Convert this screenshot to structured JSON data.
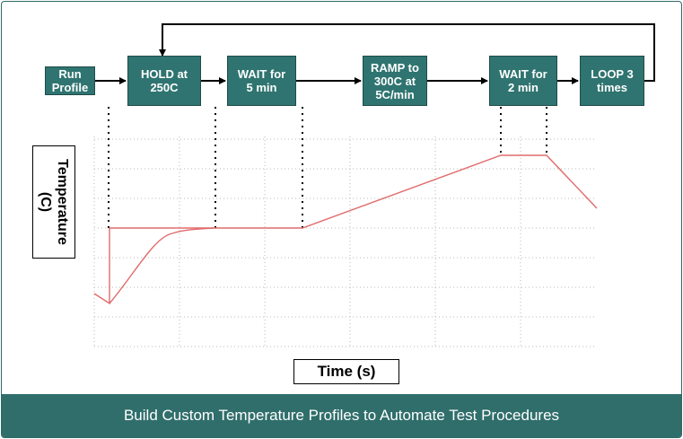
{
  "flow": {
    "steps": [
      {
        "id": "run",
        "label": "Run\nProfile"
      },
      {
        "id": "hold",
        "label": "HOLD at\n250C"
      },
      {
        "id": "wait1",
        "label": "WAIT for\n5 min"
      },
      {
        "id": "ramp",
        "label": "RAMP to\n300C at\n5C/min"
      },
      {
        "id": "wait2",
        "label": "WAIT for\n2 min"
      },
      {
        "id": "loop",
        "label": "LOOP 3\ntimes"
      }
    ],
    "loop_back": {
      "from": "loop",
      "to": "hold"
    }
  },
  "chart": {
    "ylabel": "Temperature\n(C)",
    "xlabel": "Time (s)"
  },
  "footer": {
    "caption": "Build Custom Temperature Profiles to Automate Test Procedures"
  },
  "colors": {
    "box_fill": "#2f7470",
    "footer_fill": "#2f6e6b",
    "curve": "#e06b6b",
    "grid": "#b8b8b8"
  }
}
